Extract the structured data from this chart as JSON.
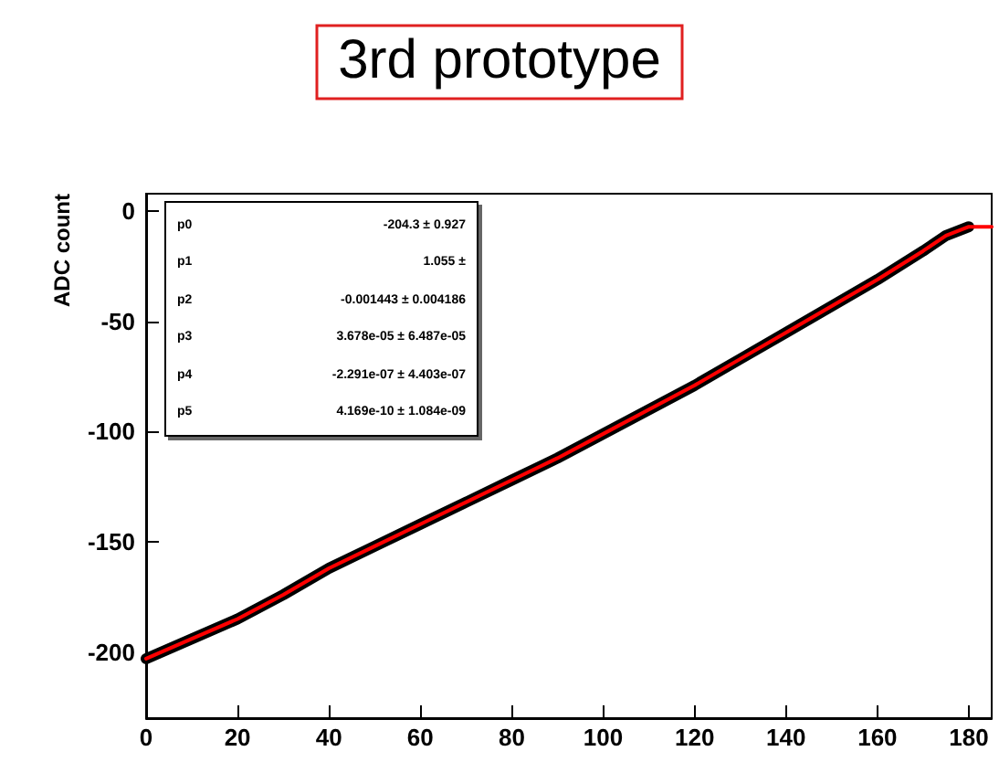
{
  "chart_data": {
    "type": "line",
    "title": "3rd prototype",
    "ylabel": "ADC count",
    "x": [
      0,
      10,
      20,
      30,
      40,
      50,
      60,
      70,
      80,
      90,
      100,
      110,
      120,
      130,
      140,
      150,
      160,
      170,
      175,
      180,
      185
    ],
    "series": [
      {
        "color": "#000000",
        "values": [
          -203,
          -194,
          -185,
          -174,
          -162,
          -152,
          -142,
          -132,
          -122,
          -112,
          -101,
          -90,
          -79,
          -67,
          -55,
          -43,
          -31,
          -18,
          -11,
          -7,
          null
        ]
      },
      {
        "color": "#ff0000",
        "values": [
          -203,
          -194,
          -185,
          -174,
          -162,
          -152,
          -142,
          -132,
          -122,
          -112,
          -101,
          -90,
          -79,
          -67,
          -55,
          -43,
          -31,
          -18,
          -11,
          -7,
          -7
        ]
      }
    ],
    "xlim": [
      0,
      185
    ],
    "xticks": [
      0,
      20,
      40,
      60,
      80,
      100,
      120,
      140,
      160,
      180
    ],
    "ylim": [
      -230,
      8
    ],
    "yticks": [
      -200,
      -150,
      -100,
      -50,
      0
    ],
    "marker": "none",
    "line_style": "solid",
    "annotations": [
      "p0",
      "-204.3 ± 0.927",
      "p1",
      "1.055 ±",
      "p2",
      "-0.001443 ± 0.004186",
      "p3",
      "3.678e-05 ± 6.487e-05",
      "p4",
      "-2.291e-07 ± 4.403e-07",
      "p5",
      "4.169e-10 ± 1.084e-09"
    ]
  }
}
